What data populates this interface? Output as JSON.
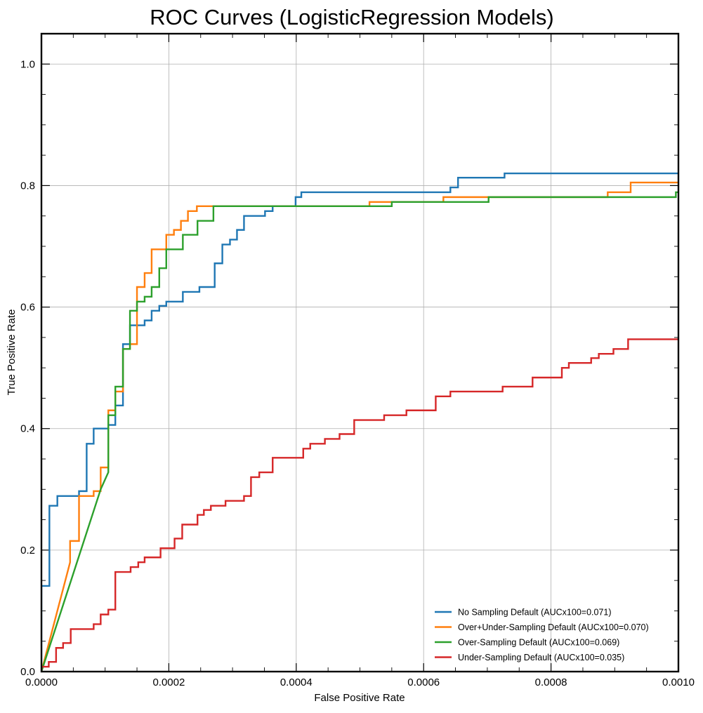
{
  "chart_data": {
    "type": "line",
    "title": "ROC Curves (LogisticRegression Models)",
    "xlabel": "False Positive Rate",
    "ylabel": "True Positive Rate",
    "xlim": [
      0,
      0.001
    ],
    "ylim": [
      0,
      1.05
    ],
    "x_ticks": [
      0,
      0.0002,
      0.0004,
      0.0006,
      0.0008,
      0.001
    ],
    "x_tick_labels": [
      "0.0000",
      "0.0002",
      "0.0004",
      "0.0006",
      "0.0008",
      "0.0010"
    ],
    "y_ticks": [
      0,
      0.2,
      0.4,
      0.6,
      0.8,
      1.0
    ],
    "y_tick_labels": [
      "0.0",
      "0.2",
      "0.4",
      "0.6",
      "0.8",
      "1.0"
    ],
    "grid": true,
    "legend_position": "lower-right",
    "series": [
      {
        "name": "No Sampling Default (AUCx100=0.071)",
        "color": "#1f77b4",
        "points": [
          [
            0,
            0
          ],
          [
            0,
            0.141
          ],
          [
            1.25e-05,
            0.141
          ],
          [
            1.25e-05,
            0.273
          ],
          [
            2.5e-05,
            0.273
          ],
          [
            2.5e-05,
            0.289
          ],
          [
            5.9e-05,
            0.289
          ],
          [
            5.9e-05,
            0.297
          ],
          [
            7.1e-05,
            0.297
          ],
          [
            7.1e-05,
            0.375
          ],
          [
            8.2e-05,
            0.375
          ],
          [
            8.2e-05,
            0.4
          ],
          [
            0.000105,
            0.4
          ],
          [
            0.000105,
            0.406
          ],
          [
            0.000116,
            0.406
          ],
          [
            0.000116,
            0.438
          ],
          [
            0.000128,
            0.438
          ],
          [
            0.000128,
            0.539
          ],
          [
            0.000139,
            0.539
          ],
          [
            0.000139,
            0.57
          ],
          [
            0.000162,
            0.57
          ],
          [
            0.000162,
            0.578
          ],
          [
            0.000173,
            0.578
          ],
          [
            0.000173,
            0.594
          ],
          [
            0.000185,
            0.594
          ],
          [
            0.000185,
            0.602
          ],
          [
            0.000196,
            0.602
          ],
          [
            0.000196,
            0.609
          ],
          [
            0.000222,
            0.609
          ],
          [
            0.000222,
            0.625
          ],
          [
            0.000248,
            0.625
          ],
          [
            0.000248,
            0.633
          ],
          [
            0.000272,
            0.633
          ],
          [
            0.000272,
            0.672
          ],
          [
            0.000284,
            0.672
          ],
          [
            0.000284,
            0.703
          ],
          [
            0.000296,
            0.703
          ],
          [
            0.000296,
            0.711
          ],
          [
            0.000307,
            0.711
          ],
          [
            0.000307,
            0.727
          ],
          [
            0.000318,
            0.727
          ],
          [
            0.000318,
            0.75
          ],
          [
            0.000351,
            0.75
          ],
          [
            0.000351,
            0.758
          ],
          [
            0.000363,
            0.758
          ],
          [
            0.000363,
            0.766
          ],
          [
            0.000399,
            0.766
          ],
          [
            0.000399,
            0.781
          ],
          [
            0.000408,
            0.781
          ],
          [
            0.000408,
            0.789
          ],
          [
            0.000642,
            0.789
          ],
          [
            0.000642,
            0.797
          ],
          [
            0.000654,
            0.797
          ],
          [
            0.000654,
            0.813
          ],
          [
            0.000727,
            0.813
          ],
          [
            0.000727,
            0.82
          ],
          [
            0.001,
            0.82
          ]
        ]
      },
      {
        "name": "Over+Under-Sampling Default (AUCx100=0.070)",
        "color": "#ff7f0e",
        "points": [
          [
            0,
            0
          ],
          [
            4.5e-05,
            0.18
          ],
          [
            4.5e-05,
            0.215
          ],
          [
            5.9e-05,
            0.215
          ],
          [
            5.9e-05,
            0.289
          ],
          [
            8.2e-05,
            0.289
          ],
          [
            8.2e-05,
            0.297
          ],
          [
            9.3e-05,
            0.297
          ],
          [
            9.3e-05,
            0.336
          ],
          [
            0.000105,
            0.336
          ],
          [
            0.000105,
            0.43
          ],
          [
            0.000116,
            0.43
          ],
          [
            0.000116,
            0.461
          ],
          [
            0.000128,
            0.461
          ],
          [
            0.000128,
            0.531
          ],
          [
            0.000139,
            0.531
          ],
          [
            0.000139,
            0.539
          ],
          [
            0.00015,
            0.539
          ],
          [
            0.00015,
            0.633
          ],
          [
            0.000162,
            0.633
          ],
          [
            0.000162,
            0.656
          ],
          [
            0.000173,
            0.656
          ],
          [
            0.000173,
            0.695
          ],
          [
            0.000196,
            0.695
          ],
          [
            0.000196,
            0.719
          ],
          [
            0.000208,
            0.719
          ],
          [
            0.000208,
            0.727
          ],
          [
            0.000219,
            0.727
          ],
          [
            0.000219,
            0.742
          ],
          [
            0.00023,
            0.742
          ],
          [
            0.00023,
            0.758
          ],
          [
            0.000244,
            0.758
          ],
          [
            0.000244,
            0.766
          ],
          [
            0.000515,
            0.766
          ],
          [
            0.000515,
            0.773
          ],
          [
            0.000631,
            0.773
          ],
          [
            0.000631,
            0.781
          ],
          [
            0.000889,
            0.781
          ],
          [
            0.000889,
            0.789
          ],
          [
            0.000925,
            0.789
          ],
          [
            0.000925,
            0.805
          ],
          [
            0.001,
            0.805
          ]
        ]
      },
      {
        "name": "Over-Sampling Default (AUCx100=0.069)",
        "color": "#2ca02c",
        "points": [
          [
            0,
            0
          ],
          [
            9.3e-05,
            0.3
          ],
          [
            0.000105,
            0.328
          ],
          [
            0.000105,
            0.422
          ],
          [
            0.000116,
            0.422
          ],
          [
            0.000116,
            0.469
          ],
          [
            0.000128,
            0.469
          ],
          [
            0.000128,
            0.531
          ],
          [
            0.000139,
            0.531
          ],
          [
            0.000139,
            0.594
          ],
          [
            0.00015,
            0.594
          ],
          [
            0.00015,
            0.609
          ],
          [
            0.000162,
            0.609
          ],
          [
            0.000162,
            0.617
          ],
          [
            0.000173,
            0.617
          ],
          [
            0.000173,
            0.633
          ],
          [
            0.000185,
            0.633
          ],
          [
            0.000185,
            0.664
          ],
          [
            0.000196,
            0.664
          ],
          [
            0.000196,
            0.695
          ],
          [
            0.000222,
            0.695
          ],
          [
            0.000222,
            0.719
          ],
          [
            0.000245,
            0.719
          ],
          [
            0.000245,
            0.742
          ],
          [
            0.00027,
            0.742
          ],
          [
            0.00027,
            0.766
          ],
          [
            0.00055,
            0.766
          ],
          [
            0.00055,
            0.773
          ],
          [
            0.000702,
            0.773
          ],
          [
            0.000702,
            0.781
          ],
          [
            0.000996,
            0.781
          ],
          [
            0.000996,
            0.789
          ],
          [
            0.001,
            0.789
          ]
        ]
      },
      {
        "name": "Under-Sampling Default (AUCx100=0.035)",
        "color": "#d62728",
        "points": [
          [
            0,
            0
          ],
          [
            0,
            0.008
          ],
          [
            1.15e-05,
            0.008
          ],
          [
            1.15e-05,
            0.016
          ],
          [
            2.3e-05,
            0.016
          ],
          [
            2.3e-05,
            0.039
          ],
          [
            3.4e-05,
            0.039
          ],
          [
            3.4e-05,
            0.047
          ],
          [
            4.6e-05,
            0.047
          ],
          [
            4.6e-05,
            0.07
          ],
          [
            8.2e-05,
            0.07
          ],
          [
            8.2e-05,
            0.078
          ],
          [
            9.3e-05,
            0.078
          ],
          [
            9.3e-05,
            0.094
          ],
          [
            0.000105,
            0.094
          ],
          [
            0.000105,
            0.102
          ],
          [
            0.000116,
            0.102
          ],
          [
            0.000116,
            0.164
          ],
          [
            0.00014,
            0.164
          ],
          [
            0.00014,
            0.172
          ],
          [
            0.000152,
            0.172
          ],
          [
            0.000152,
            0.18
          ],
          [
            0.000162,
            0.18
          ],
          [
            0.000162,
            0.188
          ],
          [
            0.000187,
            0.188
          ],
          [
            0.000187,
            0.203
          ],
          [
            0.000209,
            0.203
          ],
          [
            0.000209,
            0.219
          ],
          [
            0.000221,
            0.219
          ],
          [
            0.000221,
            0.242
          ],
          [
            0.000245,
            0.242
          ],
          [
            0.000245,
            0.258
          ],
          [
            0.000255,
            0.258
          ],
          [
            0.000255,
            0.266
          ],
          [
            0.000266,
            0.266
          ],
          [
            0.000266,
            0.273
          ],
          [
            0.000289,
            0.273
          ],
          [
            0.000289,
            0.281
          ],
          [
            0.000318,
            0.281
          ],
          [
            0.000318,
            0.289
          ],
          [
            0.000329,
            0.289
          ],
          [
            0.000329,
            0.32
          ],
          [
            0.000342,
            0.32
          ],
          [
            0.000342,
            0.328
          ],
          [
            0.000363,
            0.328
          ],
          [
            0.000363,
            0.352
          ],
          [
            0.000411,
            0.352
          ],
          [
            0.000411,
            0.367
          ],
          [
            0.000422,
            0.367
          ],
          [
            0.000422,
            0.375
          ],
          [
            0.000445,
            0.375
          ],
          [
            0.000445,
            0.383
          ],
          [
            0.000468,
            0.383
          ],
          [
            0.000468,
            0.391
          ],
          [
            0.000491,
            0.391
          ],
          [
            0.000491,
            0.414
          ],
          [
            0.000538,
            0.414
          ],
          [
            0.000538,
            0.422
          ],
          [
            0.000573,
            0.422
          ],
          [
            0.000573,
            0.43
          ],
          [
            0.000619,
            0.43
          ],
          [
            0.000619,
            0.453
          ],
          [
            0.000642,
            0.453
          ],
          [
            0.000642,
            0.461
          ],
          [
            0.000724,
            0.461
          ],
          [
            0.000724,
            0.469
          ],
          [
            0.000771,
            0.469
          ],
          [
            0.000771,
            0.484
          ],
          [
            0.000817,
            0.484
          ],
          [
            0.000817,
            0.5
          ],
          [
            0.000828,
            0.5
          ],
          [
            0.000828,
            0.508
          ],
          [
            0.000863,
            0.508
          ],
          [
            0.000863,
            0.516
          ],
          [
            0.000875,
            0.516
          ],
          [
            0.000875,
            0.523
          ],
          [
            0.000898,
            0.523
          ],
          [
            0.000898,
            0.531
          ],
          [
            0.000921,
            0.531
          ],
          [
            0.000921,
            0.547
          ],
          [
            0.001,
            0.547
          ]
        ]
      }
    ]
  }
}
